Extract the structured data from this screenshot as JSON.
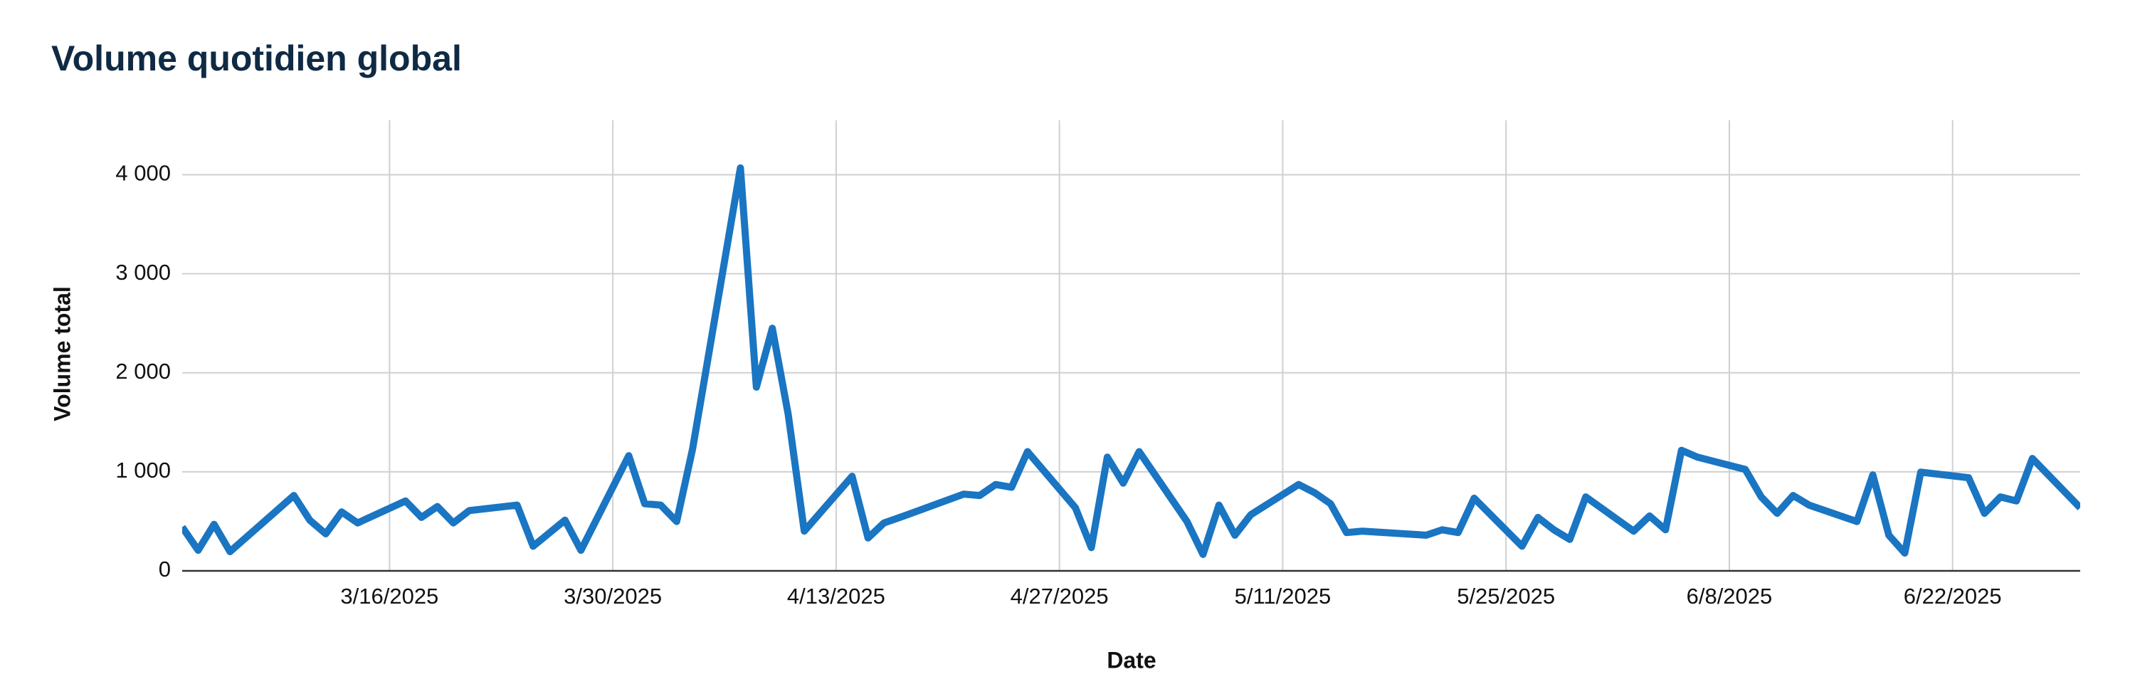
{
  "chart_data": {
    "type": "line",
    "title": "Volume quotidien global",
    "x_label": "Date",
    "y_label": "Volume total",
    "x": [
      "3/3/2025",
      "3/4/2025",
      "3/5/2025",
      "3/6/2025",
      "3/10/2025",
      "3/11/2025",
      "3/12/2025",
      "3/13/2025",
      "3/14/2025",
      "3/17/2025",
      "3/18/2025",
      "3/19/2025",
      "3/20/2025",
      "3/21/2025",
      "3/24/2025",
      "3/25/2025",
      "3/27/2025",
      "3/28/2025",
      "3/31/2025",
      "4/1/2025",
      "4/2/2025",
      "4/3/2025",
      "4/4/2025",
      "4/7/2025",
      "4/8/2025",
      "4/9/2025",
      "4/10/2025",
      "4/11/2025",
      "4/14/2025",
      "4/15/2025",
      "4/16/2025",
      "4/17/2025",
      "4/21/2025",
      "4/22/2025",
      "4/23/2025",
      "4/24/2025",
      "4/25/2025",
      "4/28/2025",
      "4/29/2025",
      "4/30/2025",
      "5/1/2025",
      "5/2/2025",
      "5/5/2025",
      "5/6/2025",
      "5/7/2025",
      "5/8/2025",
      "5/9/2025",
      "5/12/2025",
      "5/13/2025",
      "5/14/2025",
      "5/15/2025",
      "5/16/2025",
      "5/20/2025",
      "5/21/2025",
      "5/22/2025",
      "5/23/2025",
      "5/26/2025",
      "5/27/2025",
      "5/28/2025",
      "5/29/2025",
      "5/30/2025",
      "6/2/2025",
      "6/3/2025",
      "6/4/2025",
      "6/5/2025",
      "6/6/2025",
      "6/9/2025",
      "6/10/2025",
      "6/11/2025",
      "6/12/2025",
      "6/13/2025",
      "6/16/2025",
      "6/17/2025",
      "6/18/2025",
      "6/19/2025",
      "6/20/2025",
      "6/23/2025",
      "6/24/2025",
      "6/25/2025",
      "6/26/2025",
      "6/27/2025",
      "6/30/2025"
    ],
    "series": [
      {
        "name": "Volume total",
        "color": "#1a75c2",
        "values": [
          443,
          208,
          470,
          194,
          761,
          512,
          374,
          595,
          484,
          706,
          540,
          650,
          484,
          609,
          664,
          249,
          512,
          208,
          1163,
          678,
          664,
          498,
          1232,
          4069,
          1855,
          2450,
          1578,
          401,
          955,
          332,
          484,
          540,
          775,
          761,
          872,
          844,
          1204,
          637,
          235,
          1149,
          886,
          1204,
          498,
          166,
          664,
          360,
          567,
          872,
          789,
          678,
          387,
          401,
          360,
          415,
          387,
          734,
          249,
          540,
          415,
          318,
          747,
          401,
          554,
          415,
          1218,
          1149,
          1024,
          747,
          581,
          761,
          664,
          498,
          969,
          360,
          180,
          997,
          941,
          581,
          747,
          706,
          1135,
          637
        ]
      }
    ],
    "xlim": [
      "3/3/2025",
      "6/30/2025"
    ],
    "xticks": [
      "3/16/2025",
      "3/30/2025",
      "4/13/2025",
      "4/27/2025",
      "5/11/2025",
      "5/25/2025",
      "6/8/2025",
      "6/22/2025"
    ],
    "ylim": [
      0,
      4550
    ],
    "yticks": [
      0,
      {
        "value": 1000,
        "label": "1 000"
      },
      {
        "value": 2000,
        "label": "2 000"
      },
      {
        "value": 3000,
        "label": "3 000"
      },
      {
        "value": 4000,
        "label": "4 000"
      }
    ],
    "grid": true
  }
}
